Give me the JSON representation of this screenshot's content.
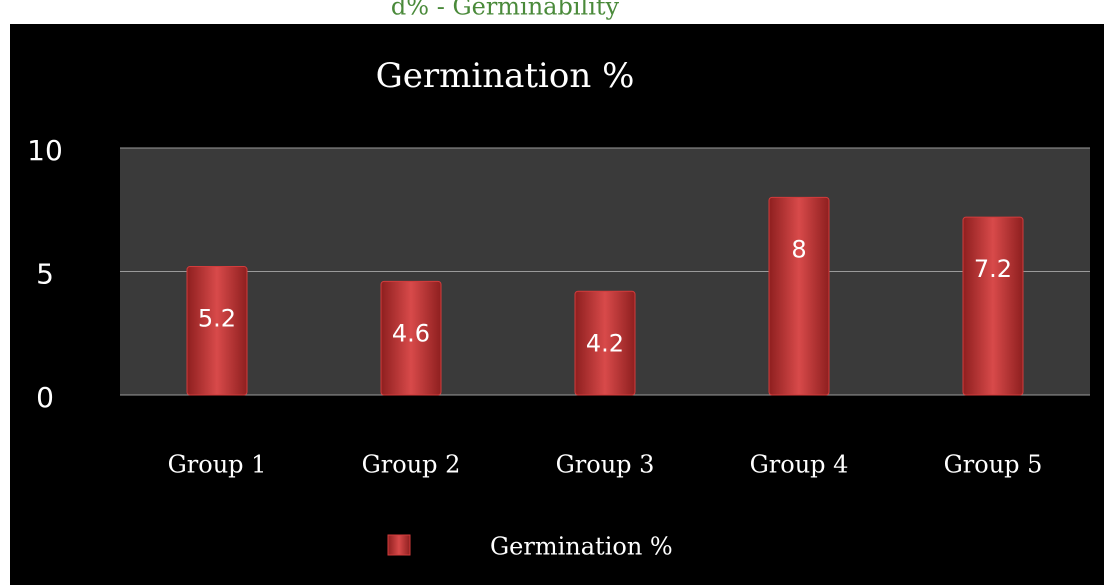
{
  "caption": "d% - Germinability",
  "chart_data": {
    "type": "bar",
    "title": "Germination %",
    "categories": [
      "Group 1",
      "Group 2",
      "Group 3",
      "Group 4",
      "Group 5"
    ],
    "series": [
      {
        "name": "Germination %",
        "color": "#d23c3c",
        "values": [
          5.2,
          4.6,
          4.2,
          8,
          7.2
        ]
      }
    ],
    "ylim": [
      0,
      10
    ],
    "yticks": [
      0,
      5,
      10
    ],
    "grid": true,
    "legend": "bottom"
  }
}
